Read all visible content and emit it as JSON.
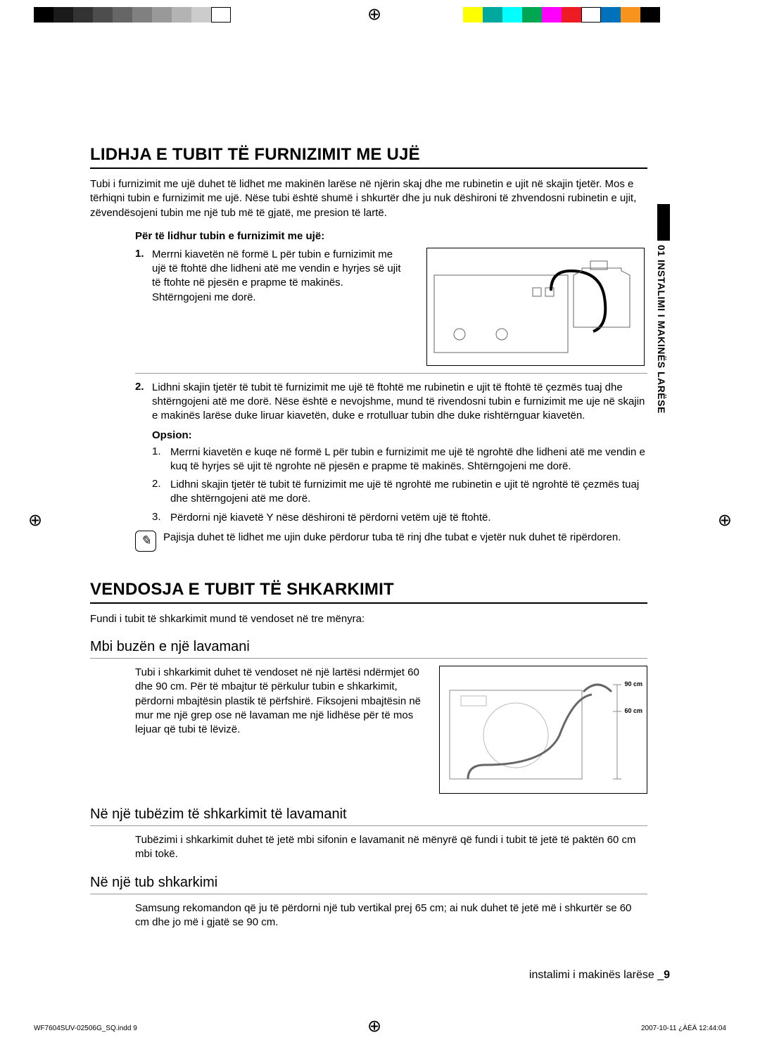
{
  "colorbar_left": [
    "#000000",
    "#1a1a1a",
    "#333333",
    "#4d4d4d",
    "#666666",
    "#808080",
    "#999999",
    "#b3b3b3",
    "#cccccc",
    "#ffffff"
  ],
  "colorbar_right": [
    "#ffff00",
    "#00a99d",
    "#00ffff",
    "#00a651",
    "#ff00ff",
    "#ed1c24",
    "#ffffff",
    "#0072bc",
    "#f7941e",
    "#000000"
  ],
  "side_tab": "01 INSTALIMI I MAKINËS LARËSE",
  "s1": {
    "title": "LIDHJA E TUBIT TË FURNIZIMIT ME UJË",
    "intro": "Tubi i furnizimit me ujë duhet të lidhet me makinën larëse në njërin skaj dhe me rubinetin e ujit në skajin tjetër. Mos e tërhiqni tubin e furnizimit me ujë. Nëse tubi është shumë i shkurtër dhe ju nuk dëshironi të zhvendosni rubinetin e ujit, zëvendësojeni tubin me një tub më të gjatë, me presion të lartë.",
    "sub_head": "Për të lidhur tubin e furnizimit me ujë:",
    "step1_n": "1.",
    "step1": "Merrni kiavetën në formë L për tubin e furnizimit me ujë të ftohtë dhe lidheni atë me vendin e hyrjes së ujit të ftohte në pjesën e prapme të makinës. Shtërngojeni me dorë.",
    "step2_n": "2.",
    "step2": "Lidhni skajin tjetër të tubit të furnizimit me ujë të ftohtë me rubinetin e ujit të ftohtë të çezmës tuaj dhe shtërngojeni atë me dorë. Nëse është e nevojshme, mund të rivendosni tubin e furnizimit me uje në skajin e makinës larëse duke liruar kiavetën, duke e rrotulluar tubin dhe duke rishtërnguar kiavetën.",
    "opsion_head": "Opsion:",
    "op1_n": "1.",
    "op1": "Merrni kiavetën e kuqe në formë L për tubin e furnizimit me ujë të ngrohtë dhe lidheni atë me vendin e kuq të hyrjes së ujit të ngrohte në pjesën e prapme të makinës. Shtërngojeni me dorë.",
    "op2_n": "2.",
    "op2": "Lidhni skajin tjetër të tubit të furnizimit me ujë të ngrohtë me rubinetin e ujit të ngrohtë të çezmës tuaj dhe shtërngojeni atë me dorë.",
    "op3_n": "3.",
    "op3": "Përdorni një kiavetë Y nëse dëshironi të përdorni vetëm ujë të ftohtë.",
    "note": "Pajisja duhet të lidhet me ujin duke përdorur tuba të rinj dhe tubat e vjetër nuk duhet të ripërdoren."
  },
  "s2": {
    "title": "VENDOSJA E TUBIT TË SHKARKIMIT",
    "intro": "Fundi i tubit të shkarkimit mund të vendoset në tre mënyra:",
    "h1": "Mbi buzën e një lavamani",
    "b1": "Tubi i shkarkimit duhet të vendoset në një lartësi ndërmjet 60 dhe 90 cm. Për të mbajtur të përkulur tubin e shkarkimit, përdorni mbajtësin plastik të përfshirë. Fiksojeni mbajtësin në mur me një grep ose në lavaman me një lidhëse për të mos lejuar që tubi të lëvizë.",
    "fig2_lbl_90": "90 cm",
    "fig2_lbl_60": "60 cm",
    "h2": "Në një tubëzim të shkarkimit të lavamanit",
    "b2": "Tubëzimi i shkarkimit duhet të jetë mbi sifonin e lavamanit në mënyrë që fundi i tubit të jetë të paktën 60 cm mbi tokë.",
    "h3": "Në një tub shkarkimi",
    "b3": "Samsung rekomandon që ju të përdorni një tub vertikal prej 65 cm; ai nuk duhet të jetë më i shkurtër se 60 cm dhe jo më i gjatë se 90 cm."
  },
  "footer": {
    "text": "instalimi i makinës larëse _",
    "page": "9"
  },
  "print": {
    "left": "WF7604SUV-02506G_SQ.indd   9",
    "right": "2007-10-11   ¿ÀÈÄ 12:44:04"
  }
}
